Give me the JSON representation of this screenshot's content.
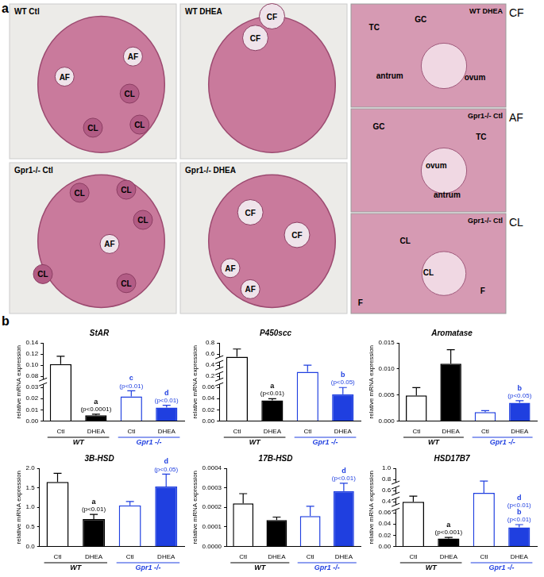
{
  "panel_a": {
    "label": "a",
    "images": [
      {
        "title": "WT Ctl",
        "marks": [
          "AF",
          "AF",
          "CL",
          "CL",
          "CL"
        ]
      },
      {
        "title": "WT DHEA",
        "marks": [
          "CF",
          "CF"
        ]
      },
      {
        "title": "Gpr1-/- Ctl",
        "marks": [
          "CL",
          "CL",
          "CL",
          "AF",
          "CL",
          "CL"
        ]
      },
      {
        "title": "Gpr1-/- DHEA",
        "marks": [
          "CF",
          "CF",
          "AF",
          "AF"
        ]
      }
    ],
    "insets": [
      {
        "side_label": "CF",
        "title": "WT DHEA",
        "marks": [
          "TC",
          "GC",
          "antrum",
          "ovum"
        ]
      },
      {
        "side_label": "AF",
        "title": "Gpr1-/- Ctl",
        "marks": [
          "GC",
          "TC",
          "ovum",
          "antrum"
        ]
      },
      {
        "side_label": "CL",
        "title": "Gpr1-/- Ctl",
        "marks": [
          "CL",
          "CL",
          "F",
          "F"
        ]
      }
    ]
  },
  "panel_b_label": "b",
  "chart_data": [
    {
      "type": "bar",
      "title": "StAR",
      "ylabel": "relative mRNA expression",
      "grid": false,
      "categories": [
        "Ctl",
        "DHEA",
        "Ctl",
        "DHEA"
      ],
      "groups": [
        "WT",
        "WT",
        "Gpr1 -/-",
        "Gpr1 -/-"
      ],
      "values": [
        0.102,
        0.005,
        0.022,
        0.012
      ],
      "errors": [
        0.014,
        0.001,
        0.005,
        0.002
      ],
      "colors": [
        "#ffffff",
        "#000000",
        "#ffffff",
        "#1f3fe0"
      ],
      "annotations": [
        null,
        [
          "a",
          "(p<0.0001)"
        ],
        [
          "c",
          "(p<0.01)"
        ],
        [
          "d",
          "(p<0.01)"
        ]
      ],
      "ylim": [
        0,
        0.14
      ],
      "yticks": [
        {
          "value": 0,
          "label": "0.00"
        },
        0.01,
        0.02,
        0.03,
        0.08,
        {
          "value": 0.1,
          "label": "0.10"
        },
        0.12,
        0.14
      ]
    },
    {
      "type": "bar",
      "title": "P450scc",
      "ylabel": "relative mRNA expression",
      "grid": false,
      "categories": [
        "Ctl",
        "DHEA",
        "Ctl",
        "DHEA"
      ],
      "groups": [
        "WT",
        "WT",
        "Gpr1 -/-",
        "Gpr1 -/-"
      ],
      "values": [
        0.55,
        0.037,
        0.28,
        0.048
      ],
      "errors": [
        0.14,
        0.003,
        0.12,
        0.012
      ],
      "colors": [
        "#ffffff",
        "#000000",
        "#ffffff",
        "#1f3fe0"
      ],
      "annotations": [
        null,
        [
          "a",
          "(p<0.01)"
        ],
        null,
        [
          "b",
          "(p<0.05)"
        ]
      ],
      "ylim": [
        0,
        0.8
      ],
      "yticks": [
        {
          "value": 0,
          "label": "0.00"
        },
        0.02,
        0.04,
        0.06,
        0.2,
        0.4,
        0.6,
        0.8
      ]
    },
    {
      "type": "bar",
      "title": "Aromatase",
      "ylabel": "relative mRNA expression",
      "grid": false,
      "categories": [
        "Ctl",
        "DHEA",
        "Ctl",
        "DHEA"
      ],
      "groups": [
        "WT",
        "WT",
        "Gpr1 -/-",
        "Gpr1 -/-"
      ],
      "values": [
        0.0049,
        0.011,
        0.0017,
        0.0035
      ],
      "errors": [
        0.0015,
        0.0027,
        0.0003,
        0.0004
      ],
      "colors": [
        "#ffffff",
        "#000000",
        "#ffffff",
        "#1f3fe0"
      ],
      "annotations": [
        null,
        null,
        null,
        [
          "b",
          "(p<0.05)"
        ]
      ],
      "ylim": [
        0,
        0.015
      ],
      "yticks": [
        {
          "value": 0,
          "label": "0.000"
        },
        0.005,
        {
          "value": 0.01,
          "label": "0.010"
        },
        0.015
      ]
    },
    {
      "type": "bar",
      "title": "3B-HSD",
      "ylabel": "relative mRNA expression",
      "grid": false,
      "categories": [
        "Ctl",
        "DHEA",
        "Ctl",
        "DHEA"
      ],
      "groups": [
        "WT",
        "WT",
        "Gpr1 -/-",
        "Gpr1 -/-"
      ],
      "values": [
        1.65,
        0.7,
        1.05,
        1.53
      ],
      "errors": [
        0.22,
        0.12,
        0.1,
        0.32
      ],
      "colors": [
        "#ffffff",
        "#000000",
        "#ffffff",
        "#1f3fe0"
      ],
      "annotations": [
        null,
        [
          "a",
          "(p<0.01)"
        ],
        null,
        [
          "d",
          "(p<0.05)"
        ]
      ],
      "ylim": [
        0,
        2
      ],
      "yticks": [
        {
          "value": 0,
          "label": "0.0"
        },
        0.5,
        {
          "value": 1,
          "label": "1.0"
        },
        1.5,
        {
          "value": 2,
          "label": "2.0"
        }
      ]
    },
    {
      "type": "bar",
      "title": "17B-HSD",
      "ylabel": "relative mRNA expression",
      "grid": false,
      "categories": [
        "Ctl",
        "DHEA",
        "Ctl",
        "DHEA"
      ],
      "groups": [
        "WT",
        "WT",
        "Gpr1 -/-",
        "Gpr1 -/-"
      ],
      "values": [
        0.00022,
        0.000135,
        0.000155,
        0.000283
      ],
      "errors": [
        5e-05,
        1.5e-05,
        5e-05,
        4e-05
      ],
      "colors": [
        "#ffffff",
        "#000000",
        "#ffffff",
        "#1f3fe0"
      ],
      "annotations": [
        null,
        null,
        null,
        [
          "d",
          "(p<0.01)"
        ]
      ],
      "ylim": [
        0,
        0.0004
      ],
      "yticks": [
        {
          "value": 0,
          "label": "0.0000"
        },
        0.0001,
        0.0002,
        0.0003,
        0.0004
      ]
    },
    {
      "type": "bar",
      "title": "HSD17B7",
      "ylabel": "relative mRNA expression",
      "grid": false,
      "categories": [
        "Ctl",
        "DHEA",
        "Ctl",
        "DHEA"
      ],
      "groups": [
        "WT",
        "WT",
        "Gpr1 -/-",
        "Gpr1 -/-"
      ],
      "values": [
        0.4,
        0.014,
        0.56,
        0.034
      ],
      "errors": [
        0.1,
        0.002,
        0.21,
        0.005
      ],
      "colors": [
        "#ffffff",
        "#000000",
        "#ffffff",
        "#1f3fe0"
      ],
      "annotations": [
        null,
        [
          "a",
          "(p<0.001)"
        ],
        null,
        [
          "d",
          "(p<0.01)",
          "b",
          "(p<0.01)"
        ]
      ],
      "ylim": [
        0,
        1
      ],
      "yticks": [
        {
          "value": 0,
          "label": "0.00"
        },
        0.02,
        0.04,
        0.06,
        0.4,
        0.6,
        0.8,
        {
          "value": 1,
          "label": "1.0"
        }
      ]
    }
  ]
}
